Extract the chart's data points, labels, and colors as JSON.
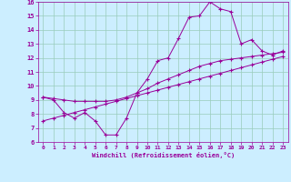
{
  "xlabel": "Windchill (Refroidissement éolien,°C)",
  "background_color": "#cceeff",
  "grid_color": "#99ccbb",
  "line_color": "#990099",
  "xlim": [
    -0.5,
    23.5
  ],
  "ylim": [
    6,
    16
  ],
  "xticks": [
    0,
    1,
    2,
    3,
    4,
    5,
    6,
    7,
    8,
    9,
    10,
    11,
    12,
    13,
    14,
    15,
    16,
    17,
    18,
    19,
    20,
    21,
    22,
    23
  ],
  "yticks": [
    6,
    7,
    8,
    9,
    10,
    11,
    12,
    13,
    14,
    15,
    16
  ],
  "line1_x": [
    0,
    1,
    2,
    3,
    4,
    5,
    6,
    7,
    8,
    9,
    10,
    11,
    12,
    13,
    14,
    15,
    16,
    17,
    18,
    19,
    20,
    21,
    22,
    23
  ],
  "line1_y": [
    9.2,
    9.0,
    8.1,
    7.7,
    8.1,
    7.5,
    6.5,
    6.5,
    7.7,
    9.5,
    10.5,
    11.8,
    12.0,
    13.4,
    14.9,
    15.0,
    16.0,
    15.5,
    15.3,
    13.0,
    13.3,
    12.5,
    12.2,
    12.5
  ],
  "line2_x": [
    0,
    1,
    2,
    3,
    4,
    5,
    6,
    7,
    8,
    9,
    10,
    11,
    12,
    13,
    14,
    15,
    16,
    17,
    18,
    19,
    20,
    21,
    22,
    23
  ],
  "line2_y": [
    9.2,
    9.1,
    9.0,
    8.9,
    8.9,
    8.9,
    8.9,
    9.0,
    9.2,
    9.5,
    9.8,
    10.2,
    10.5,
    10.8,
    11.1,
    11.4,
    11.6,
    11.8,
    11.9,
    12.0,
    12.1,
    12.2,
    12.3,
    12.4
  ],
  "line3_x": [
    0,
    1,
    2,
    3,
    4,
    5,
    6,
    7,
    8,
    9,
    10,
    11,
    12,
    13,
    14,
    15,
    16,
    17,
    18,
    19,
    20,
    21,
    22,
    23
  ],
  "line3_y": [
    7.5,
    7.7,
    7.9,
    8.1,
    8.3,
    8.5,
    8.7,
    8.9,
    9.1,
    9.3,
    9.5,
    9.7,
    9.9,
    10.1,
    10.3,
    10.5,
    10.7,
    10.9,
    11.1,
    11.3,
    11.5,
    11.7,
    11.9,
    12.1
  ]
}
